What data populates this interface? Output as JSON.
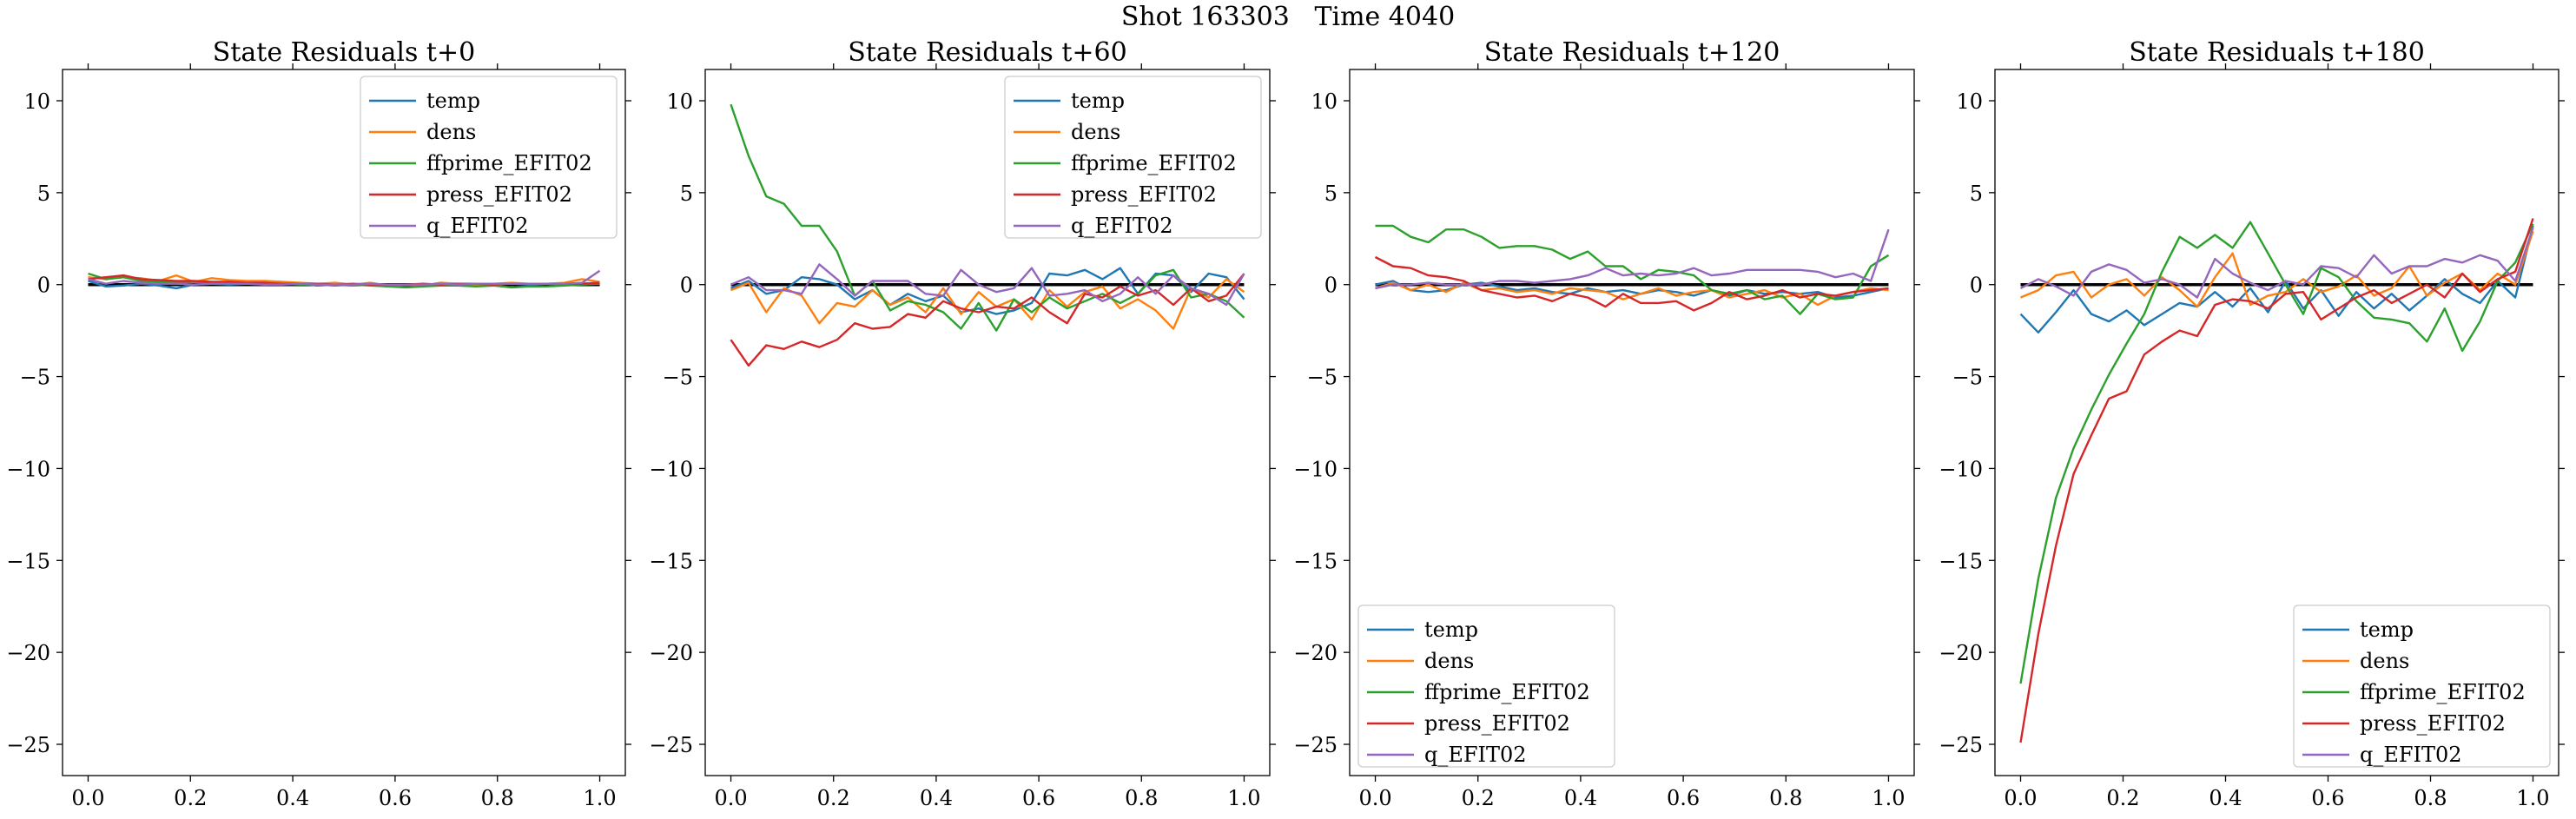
{
  "figure": {
    "title": "Shot 163303   Time 4040"
  },
  "chart_data": [
    {
      "type": "line",
      "title": "State Residuals t+0",
      "xlim": [
        -0.05,
        1.05
      ],
      "ylim": [
        -26.7,
        11.7
      ],
      "xticks": [
        0.0,
        0.2,
        0.4,
        0.6,
        0.8,
        1.0
      ],
      "xtick_labels": [
        "0.0",
        "0.2",
        "0.4",
        "0.6",
        "0.8",
        "1.0"
      ],
      "yticks": [
        10,
        5,
        0,
        -5,
        -10,
        -15,
        -20,
        -25
      ],
      "ytick_labels": [
        "10",
        "5",
        "0",
        "−5",
        "−10",
        "−15",
        "−20",
        "−25"
      ],
      "legend": "upper right",
      "zero_line": true,
      "x": [
        0.0,
        0.0345,
        0.069,
        0.1034,
        0.1379,
        0.1724,
        0.2069,
        0.2414,
        0.2759,
        0.3103,
        0.3448,
        0.3793,
        0.4138,
        0.4483,
        0.4828,
        0.5172,
        0.5517,
        0.5862,
        0.6207,
        0.6552,
        0.6897,
        0.7241,
        0.7586,
        0.7931,
        0.8276,
        0.8621,
        0.8966,
        0.931,
        0.9655,
        1.0
      ],
      "series": [
        {
          "name": "temp",
          "color": "#1f77b4",
          "values": [
            0.2,
            -0.1,
            -0.05,
            0.05,
            -0.05,
            -0.2,
            0.0,
            0.05,
            0.0,
            0.05,
            0.0,
            0.05,
            0.05,
            -0.05,
            0.0,
            0.0,
            0.0,
            -0.1,
            0.0,
            -0.05,
            0.1,
            0.0,
            -0.05,
            0.05,
            0.05,
            0.0,
            0.05,
            0.0,
            0.05,
            0.1
          ]
        },
        {
          "name": "dens",
          "color": "#ff7f0e",
          "values": [
            0.4,
            0.3,
            0.4,
            0.35,
            0.2,
            0.5,
            0.15,
            0.35,
            0.25,
            0.2,
            0.2,
            0.15,
            0.1,
            0.05,
            0.1,
            0.0,
            0.1,
            -0.05,
            0.0,
            -0.05,
            0.1,
            0.05,
            0.0,
            0.05,
            0.1,
            0.05,
            0.05,
            0.1,
            0.3,
            0.15
          ]
        },
        {
          "name": "ffprime_EFIT02",
          "color": "#2ca02c",
          "values": [
            0.6,
            0.3,
            0.4,
            0.2,
            0.15,
            0.1,
            0.15,
            0.1,
            0.1,
            0.05,
            0.05,
            0.05,
            0.0,
            0.0,
            -0.05,
            0.0,
            -0.05,
            -0.1,
            -0.15,
            -0.1,
            -0.05,
            -0.05,
            -0.1,
            -0.05,
            -0.15,
            -0.1,
            -0.1,
            -0.05,
            0.0,
            0.05
          ]
        },
        {
          "name": "press_EFIT02",
          "color": "#d62728",
          "values": [
            0.3,
            0.4,
            0.5,
            0.3,
            0.25,
            0.2,
            0.2,
            0.15,
            0.15,
            0.1,
            0.1,
            0.05,
            0.05,
            0.05,
            0.0,
            0.05,
            0.0,
            0.0,
            0.0,
            0.05,
            0.0,
            0.05,
            0.05,
            0.0,
            0.05,
            0.05,
            0.05,
            0.05,
            0.05,
            0.1
          ]
        },
        {
          "name": "q_EFIT02",
          "color": "#9467bd",
          "values": [
            0.3,
            0.05,
            0.2,
            0.1,
            0.05,
            0.05,
            0.0,
            0.05,
            0.05,
            0.05,
            0.0,
            0.0,
            0.05,
            0.0,
            0.0,
            0.0,
            0.05,
            0.0,
            0.0,
            0.0,
            0.05,
            0.0,
            0.05,
            0.05,
            0.05,
            0.05,
            0.05,
            0.05,
            0.1,
            0.75
          ]
        }
      ]
    },
    {
      "type": "line",
      "title": "State Residuals t+60",
      "xlim": [
        -0.05,
        1.05
      ],
      "ylim": [
        -26.7,
        11.7
      ],
      "xticks": [
        0.0,
        0.2,
        0.4,
        0.6,
        0.8,
        1.0
      ],
      "xtick_labels": [
        "0.0",
        "0.2",
        "0.4",
        "0.6",
        "0.8",
        "1.0"
      ],
      "yticks": [
        10,
        5,
        0,
        -5,
        -10,
        -15,
        -20,
        -25
      ],
      "ytick_labels": [
        "10",
        "5",
        "0",
        "−5",
        "−10",
        "−15",
        "−20",
        "−25"
      ],
      "legend": "upper right",
      "zero_line": true,
      "x": [
        0.0,
        0.0345,
        0.069,
        0.1034,
        0.1379,
        0.1724,
        0.2069,
        0.2414,
        0.2759,
        0.3103,
        0.3448,
        0.3793,
        0.4138,
        0.4483,
        0.4828,
        0.5172,
        0.5517,
        0.5862,
        0.6207,
        0.6552,
        0.6897,
        0.7241,
        0.7586,
        0.7931,
        0.8276,
        0.8621,
        0.8966,
        0.931,
        0.9655,
        1.0
      ],
      "series": [
        {
          "name": "temp",
          "color": "#1f77b4",
          "values": [
            -0.2,
            0.2,
            -0.5,
            -0.3,
            0.4,
            0.3,
            0.0,
            -0.8,
            -0.3,
            -1.1,
            -0.5,
            -0.9,
            -0.6,
            -1.5,
            -1.3,
            -1.6,
            -1.4,
            -1.0,
            0.6,
            0.5,
            0.8,
            0.3,
            0.9,
            -0.5,
            0.6,
            0.5,
            -0.4,
            0.6,
            0.4,
            -0.8
          ]
        },
        {
          "name": "dens",
          "color": "#ff7f0e",
          "values": [
            -0.3,
            0.1,
            -1.5,
            -0.2,
            -0.6,
            -2.1,
            -1.0,
            -1.2,
            -0.3,
            -1.1,
            -0.7,
            -1.5,
            -0.2,
            -1.6,
            -0.4,
            -1.2,
            -0.8,
            -1.9,
            -0.3,
            -1.2,
            -0.4,
            -0.1,
            -1.3,
            -0.8,
            -1.4,
            -2.4,
            -0.2,
            -0.7,
            0.3,
            -0.4
          ]
        },
        {
          "name": "ffprime_EFIT02",
          "color": "#2ca02c",
          "values": [
            9.8,
            7.0,
            4.8,
            4.4,
            3.2,
            3.2,
            1.8,
            -0.6,
            0.2,
            -1.4,
            -0.9,
            -1.1,
            -1.5,
            -2.4,
            -1.0,
            -2.5,
            -0.8,
            -1.5,
            -0.7,
            -1.3,
            -0.9,
            -0.5,
            -1.0,
            -0.5,
            0.5,
            0.8,
            -0.7,
            -0.5,
            -0.9,
            -1.8
          ]
        },
        {
          "name": "press_EFIT02",
          "color": "#d62728",
          "values": [
            -3.0,
            -4.4,
            -3.3,
            -3.5,
            -3.1,
            -3.4,
            -3.0,
            -2.1,
            -2.4,
            -2.3,
            -1.6,
            -1.8,
            -0.9,
            -1.3,
            -1.5,
            -1.2,
            -1.3,
            -0.7,
            -1.5,
            -2.1,
            -0.5,
            -0.7,
            -0.1,
            -0.6,
            -0.3,
            -1.1,
            -0.2,
            -0.9,
            -0.6,
            0.6
          ]
        },
        {
          "name": "q_EFIT02",
          "color": "#9467bd",
          "values": [
            0.0,
            0.4,
            -0.3,
            -0.3,
            -0.5,
            1.1,
            0.3,
            -0.6,
            0.2,
            0.2,
            0.2,
            -0.5,
            -0.6,
            0.8,
            0.0,
            -0.4,
            -0.2,
            0.9,
            -0.6,
            -0.5,
            -0.3,
            -0.9,
            -0.5,
            0.4,
            -0.5,
            0.5,
            -0.2,
            -0.5,
            -1.1,
            0.6
          ]
        }
      ]
    },
    {
      "type": "line",
      "title": "State Residuals t+120",
      "xlim": [
        -0.05,
        1.05
      ],
      "ylim": [
        -26.7,
        11.7
      ],
      "xticks": [
        0.0,
        0.2,
        0.4,
        0.6,
        0.8,
        1.0
      ],
      "xtick_labels": [
        "0.0",
        "0.2",
        "0.4",
        "0.6",
        "0.8",
        "1.0"
      ],
      "yticks": [
        10,
        5,
        0,
        -5,
        -10,
        -15,
        -20,
        -25
      ],
      "ytick_labels": [
        "10",
        "5",
        "0",
        "−5",
        "−10",
        "−15",
        "−20",
        "−25"
      ],
      "legend": "lower left",
      "zero_line": true,
      "x": [
        0.0,
        0.0345,
        0.069,
        0.1034,
        0.1379,
        0.1724,
        0.2069,
        0.2414,
        0.2759,
        0.3103,
        0.3448,
        0.3793,
        0.4138,
        0.4483,
        0.4828,
        0.5172,
        0.5517,
        0.5862,
        0.6207,
        0.6552,
        0.6897,
        0.7241,
        0.7586,
        0.7931,
        0.8276,
        0.8621,
        0.8966,
        0.931,
        0.9655,
        1.0
      ],
      "series": [
        {
          "name": "temp",
          "color": "#1f77b4",
          "values": [
            0.0,
            0.2,
            -0.3,
            -0.4,
            -0.3,
            0.0,
            0.1,
            -0.1,
            -0.3,
            -0.2,
            -0.4,
            -0.5,
            -0.2,
            -0.4,
            -0.3,
            -0.5,
            -0.3,
            -0.4,
            -0.6,
            -0.3,
            -0.6,
            -0.3,
            -0.5,
            -0.4,
            -0.5,
            -0.4,
            -0.7,
            -0.6,
            -0.4,
            -0.2
          ]
        },
        {
          "name": "dens",
          "color": "#ff7f0e",
          "values": [
            -0.2,
            0.1,
            -0.3,
            0.0,
            -0.4,
            0.1,
            -0.3,
            -0.2,
            -0.4,
            -0.3,
            -0.5,
            -0.2,
            -0.3,
            -0.4,
            -0.8,
            -0.5,
            -0.2,
            -0.6,
            -0.4,
            -0.3,
            -0.7,
            -0.5,
            -0.3,
            -0.7,
            -0.5,
            -1.1,
            -0.6,
            -0.4,
            -0.2,
            -0.3
          ]
        },
        {
          "name": "ffprime_EFIT02",
          "color": "#2ca02c",
          "values": [
            3.2,
            3.2,
            2.6,
            2.3,
            3.0,
            3.0,
            2.6,
            2.0,
            2.1,
            2.1,
            1.9,
            1.4,
            1.8,
            1.0,
            1.0,
            0.3,
            0.8,
            0.7,
            0.5,
            -0.3,
            -0.5,
            -0.3,
            -0.8,
            -0.6,
            -1.6,
            -0.5,
            -0.8,
            -0.7,
            1.0,
            1.6
          ]
        },
        {
          "name": "press_EFIT02",
          "color": "#d62728",
          "values": [
            1.5,
            1.0,
            0.9,
            0.5,
            0.4,
            0.2,
            -0.3,
            -0.5,
            -0.7,
            -0.6,
            -0.9,
            -0.5,
            -0.7,
            -1.2,
            -0.5,
            -1.0,
            -1.0,
            -0.9,
            -1.4,
            -1.0,
            -0.4,
            -0.8,
            -0.6,
            -0.3,
            -0.7,
            -0.5,
            -0.6,
            -0.4,
            -0.3,
            -0.2
          ]
        },
        {
          "name": "q_EFIT02",
          "color": "#9467bd",
          "values": [
            -0.2,
            0.0,
            0.0,
            0.1,
            0.0,
            0.0,
            0.0,
            0.2,
            0.2,
            0.1,
            0.2,
            0.3,
            0.5,
            0.9,
            0.5,
            0.6,
            0.5,
            0.6,
            0.9,
            0.5,
            0.6,
            0.8,
            0.8,
            0.8,
            0.8,
            0.7,
            0.4,
            0.6,
            0.2,
            3.0
          ]
        }
      ]
    },
    {
      "type": "line",
      "title": "State Residuals t+180",
      "xlim": [
        -0.05,
        1.05
      ],
      "ylim": [
        -26.7,
        11.7
      ],
      "xticks": [
        0.0,
        0.2,
        0.4,
        0.6,
        0.8,
        1.0
      ],
      "xtick_labels": [
        "0.0",
        "0.2",
        "0.4",
        "0.6",
        "0.8",
        "1.0"
      ],
      "yticks": [
        10,
        5,
        0,
        -5,
        -10,
        -15,
        -20,
        -25
      ],
      "ytick_labels": [
        "10",
        "5",
        "0",
        "−5",
        "−10",
        "−15",
        "−20",
        "−25"
      ],
      "legend": "lower right",
      "zero_line": true,
      "x": [
        0.0,
        0.0345,
        0.069,
        0.1034,
        0.1379,
        0.1724,
        0.2069,
        0.2414,
        0.2759,
        0.3103,
        0.3448,
        0.3793,
        0.4138,
        0.4483,
        0.4828,
        0.5172,
        0.5517,
        0.5862,
        0.6207,
        0.6552,
        0.6897,
        0.7241,
        0.7586,
        0.7931,
        0.8276,
        0.8621,
        0.8966,
        0.931,
        0.9655,
        1.0
      ],
      "series": [
        {
          "name": "temp",
          "color": "#1f77b4",
          "values": [
            -1.6,
            -2.6,
            -1.5,
            -0.3,
            -1.6,
            -2.0,
            -1.4,
            -2.2,
            -1.6,
            -1.0,
            -1.2,
            -0.4,
            -1.2,
            -0.2,
            -1.5,
            0.2,
            -1.3,
            -0.3,
            -1.7,
            -0.4,
            -1.3,
            -0.5,
            -1.4,
            -0.6,
            0.3,
            -0.5,
            -1.0,
            0.2,
            -0.7,
            3.2
          ]
        },
        {
          "name": "dens",
          "color": "#ff7f0e",
          "values": [
            -0.7,
            -0.3,
            0.5,
            0.7,
            -0.7,
            0.0,
            0.3,
            -0.6,
            0.4,
            -0.3,
            -1.2,
            0.4,
            1.7,
            -1.1,
            -0.6,
            -0.4,
            0.3,
            -0.4,
            -0.1,
            0.5,
            -0.6,
            -0.2,
            1.0,
            -0.6,
            0.1,
            0.6,
            -0.3,
            0.6,
            0.0,
            2.9
          ]
        },
        {
          "name": "ffprime_EFIT02",
          "color": "#2ca02c",
          "values": [
            -21.7,
            -16.0,
            -11.6,
            -8.9,
            -6.8,
            -4.9,
            -3.2,
            -1.6,
            0.7,
            2.6,
            2.0,
            2.7,
            2.0,
            3.4,
            1.7,
            0.0,
            -1.6,
            0.9,
            0.4,
            -0.9,
            -1.8,
            -1.9,
            -2.1,
            -3.1,
            -1.3,
            -3.6,
            -2.0,
            0.2,
            1.2,
            3.3
          ]
        },
        {
          "name": "press_EFIT02",
          "color": "#d62728",
          "values": [
            -24.9,
            -19.0,
            -14.2,
            -10.3,
            -8.2,
            -6.2,
            -5.8,
            -3.8,
            -3.1,
            -2.5,
            -2.8,
            -1.1,
            -0.8,
            -0.9,
            -1.3,
            -0.5,
            -0.4,
            -1.9,
            -1.3,
            -0.7,
            -0.3,
            -1.0,
            -0.5,
            0.0,
            -0.7,
            0.6,
            -0.4,
            0.3,
            0.7,
            3.6
          ]
        },
        {
          "name": "q_EFIT02",
          "color": "#9467bd",
          "values": [
            -0.2,
            0.3,
            -0.1,
            -0.6,
            0.7,
            1.1,
            0.8,
            0.1,
            0.3,
            0.0,
            -0.7,
            1.4,
            0.6,
            0.1,
            -0.3,
            0.2,
            0.0,
            1.0,
            0.9,
            0.4,
            1.6,
            0.6,
            1.0,
            1.0,
            1.4,
            1.2,
            1.6,
            1.3,
            0.2,
            3.1
          ]
        }
      ]
    }
  ]
}
